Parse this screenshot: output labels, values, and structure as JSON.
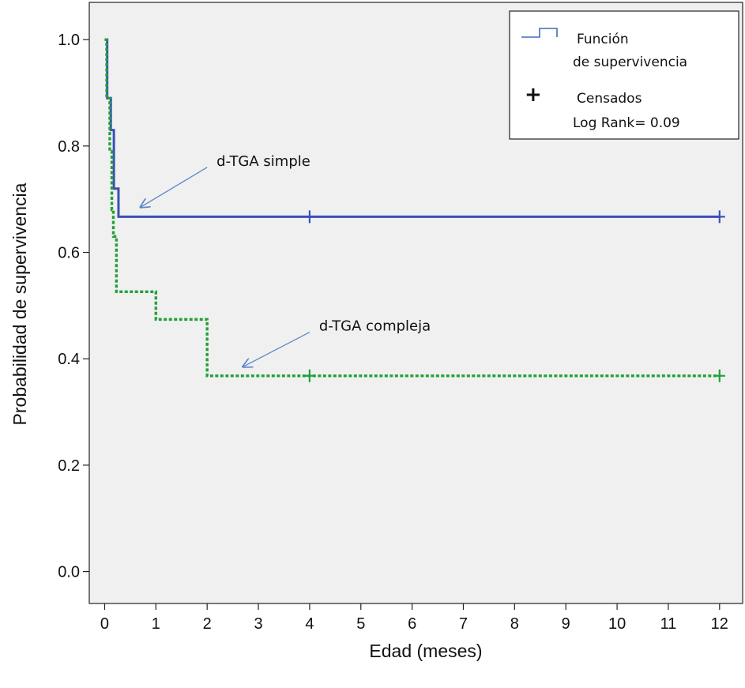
{
  "chart_data": {
    "type": "line",
    "step": true,
    "xlabel": "Edad (meses)",
    "ylabel": "Probabilidad de supervivencia",
    "xlim": [
      -0.3,
      12.45
    ],
    "ylim": [
      -0.06,
      1.07
    ],
    "x_ticks": [
      0,
      1,
      2,
      3,
      4,
      5,
      6,
      7,
      8,
      9,
      10,
      11,
      12
    ],
    "y_ticks": [
      0.0,
      0.2,
      0.4,
      0.6,
      0.8,
      1.0
    ],
    "y_tick_labels": [
      "0.0",
      "0.2",
      "0.4",
      "0.6",
      "0.8",
      "1.0"
    ],
    "grid": false,
    "series": [
      {
        "key": "simple",
        "color": "#3a4fb8",
        "style": "solid",
        "steps": [
          [
            0,
            1.0
          ],
          [
            0.05,
            0.89
          ],
          [
            0.12,
            0.83
          ],
          [
            0.18,
            0.72
          ],
          [
            0.27,
            0.667
          ],
          [
            12,
            0.667
          ]
        ],
        "censored": [
          [
            4,
            0.667
          ],
          [
            12,
            0.667
          ]
        ]
      },
      {
        "key": "compleja",
        "color": "#22a03a",
        "style": "dashed",
        "steps": [
          [
            0,
            1.0
          ],
          [
            0.04,
            0.89
          ],
          [
            0.1,
            0.79
          ],
          [
            0.14,
            0.68
          ],
          [
            0.17,
            0.63
          ],
          [
            0.23,
            0.526
          ],
          [
            1.0,
            0.474
          ],
          [
            2.0,
            0.368
          ],
          [
            12,
            0.368
          ]
        ],
        "censored": [
          [
            4,
            0.368
          ],
          [
            12,
            0.368
          ]
        ]
      }
    ],
    "annotations": [
      {
        "text": "d-TGA simple",
        "arrow_to": [
          0.7,
          0.685
        ],
        "arrow_from": [
          2.0,
          0.76
        ]
      },
      {
        "text": "d-TGA compleja",
        "arrow_to": [
          2.7,
          0.385
        ],
        "arrow_from": [
          4.0,
          0.45
        ]
      }
    ],
    "legend": {
      "position": "top-right",
      "line_label_1": "Función",
      "line_label_2": "de supervivencia",
      "censor_symbol": "+",
      "censor_label": "Censados",
      "stat": "Log Rank= 0.09",
      "symbol_color": "#3a6fbd"
    }
  }
}
